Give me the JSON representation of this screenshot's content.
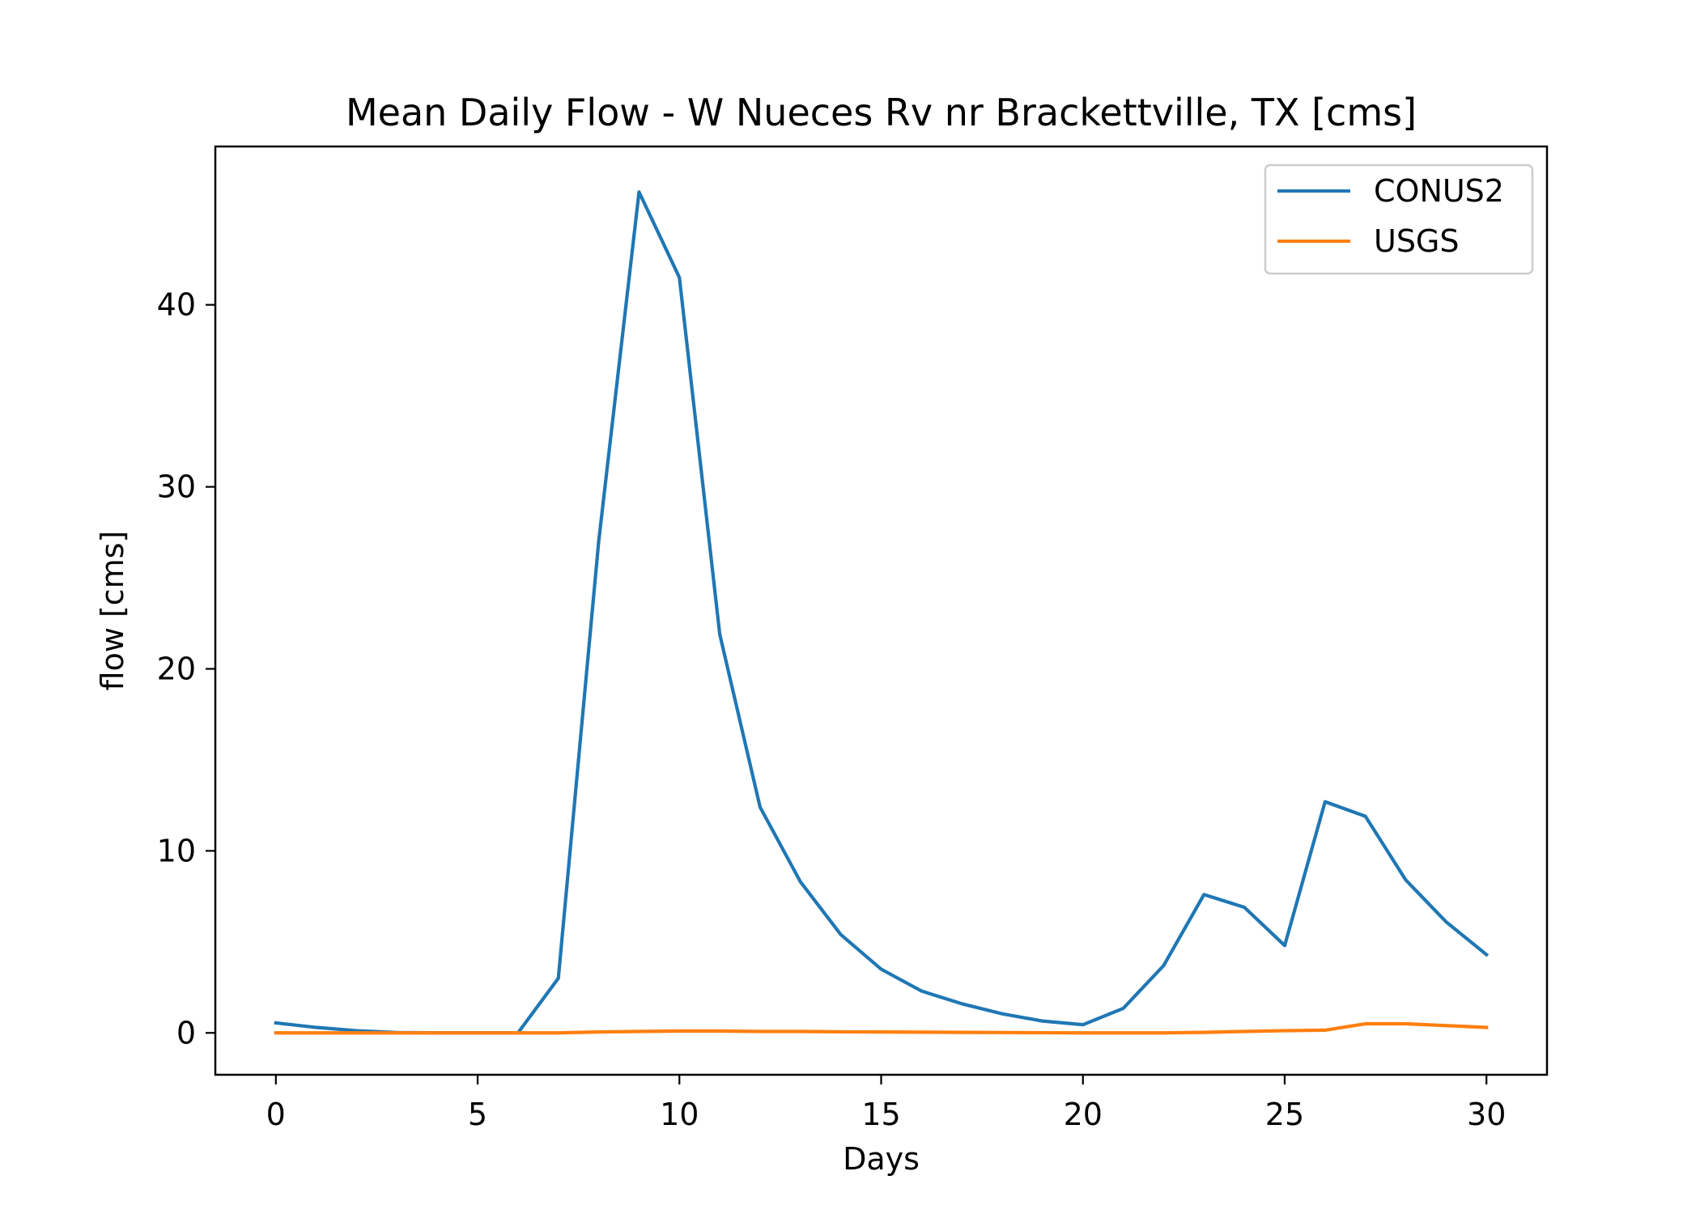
{
  "chart_data": {
    "type": "line",
    "title": "Mean Daily Flow - W Nueces Rv nr Brackettville, TX [cms]",
    "xlabel": "Days",
    "ylabel": "flow [cms]",
    "xlim": [
      -1.5,
      31.5
    ],
    "ylim": [
      -2.3,
      48.7
    ],
    "xticks": [
      0,
      5,
      10,
      15,
      20,
      25,
      30
    ],
    "yticks": [
      0,
      10,
      20,
      30,
      40
    ],
    "grid": false,
    "legend_position": "upper right",
    "x": [
      0,
      1,
      2,
      3,
      4,
      5,
      6,
      7,
      8,
      9,
      10,
      11,
      12,
      13,
      14,
      15,
      16,
      17,
      18,
      19,
      20,
      21,
      22,
      23,
      24,
      25,
      26,
      27,
      28,
      29,
      30
    ],
    "series": [
      {
        "name": "CONUS2",
        "color": "#1f77b4",
        "values": [
          0.55,
          0.3,
          0.12,
          0.02,
          0.0,
          0.0,
          0.0,
          3.0,
          27.0,
          46.2,
          41.5,
          21.9,
          12.4,
          8.3,
          5.4,
          3.5,
          2.3,
          1.6,
          1.05,
          0.65,
          0.45,
          1.35,
          3.7,
          7.6,
          6.9,
          4.8,
          12.7,
          11.9,
          8.4,
          6.1,
          4.3
        ]
      },
      {
        "name": "USGS",
        "color": "#ff7f0e",
        "values": [
          0.0,
          0.0,
          0.0,
          0.0,
          0.0,
          0.0,
          0.0,
          0.0,
          0.05,
          0.08,
          0.1,
          0.1,
          0.08,
          0.08,
          0.06,
          0.05,
          0.04,
          0.03,
          0.02,
          0.01,
          0.0,
          0.0,
          0.0,
          0.03,
          0.08,
          0.12,
          0.15,
          0.5,
          0.5,
          0.4,
          0.3
        ]
      }
    ]
  }
}
